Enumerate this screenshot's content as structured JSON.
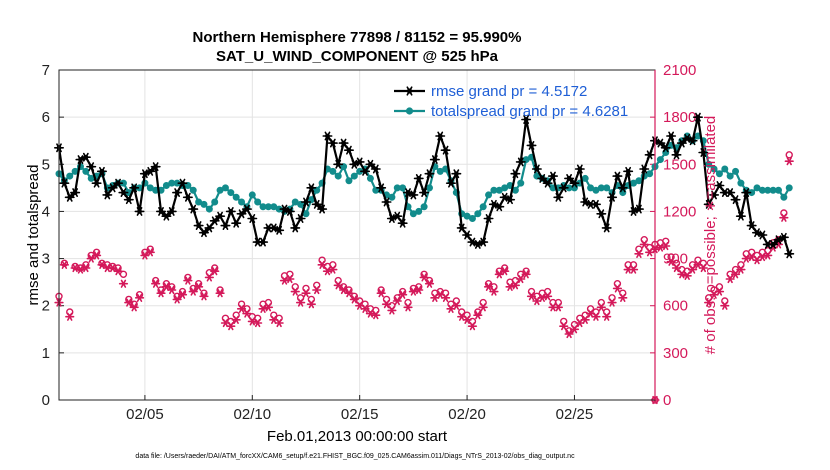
{
  "chart_data": {
    "type": "line",
    "title": "Northern Hemisphere 77898 / 81152 = 95.990%",
    "subtitle": "SAT_U_WIND_COMPONENT @ 525 hPa",
    "xlabel": "Feb.01,2013 00:00:00 start",
    "ylabel_left": "rmse and totalspread",
    "ylabel_right": "# of obs: o=possible; ∗=assimilated",
    "xlim": [
      1,
      28.75
    ],
    "ylim_left": [
      0,
      7
    ],
    "ylim_right": [
      0,
      2100
    ],
    "x_ticks": [
      5,
      10,
      15,
      20,
      25
    ],
    "x_tick_labels": [
      "02/05",
      "02/10",
      "02/15",
      "02/20",
      "02/25"
    ],
    "y_ticks_left": [
      0,
      1,
      2,
      3,
      4,
      5,
      6,
      7
    ],
    "y_tick_labels_left": [
      "0",
      "1",
      "2",
      "3",
      "4",
      "5",
      "6",
      "7"
    ],
    "y_ticks_right": [
      0,
      300,
      600,
      900,
      1200,
      1500,
      1800,
      2100
    ],
    "y_tick_labels_right": [
      "0",
      "300",
      "600",
      "900",
      "1200",
      "1500",
      "1800",
      "2100"
    ],
    "x_start": 1.0,
    "x_step": 0.25,
    "grid": true,
    "legend_position": "top-right",
    "legend_entries": [
      "rmse grand pr = 4.5172",
      "totalspread grand pr = 4.6281"
    ],
    "series": [
      {
        "name": "rmse grand pr = 4.5172",
        "axis": "left",
        "color": "#000000",
        "marker": "*",
        "values": [
          5.35,
          4.6,
          4.3,
          4.4,
          5.1,
          5.15,
          4.95,
          4.6,
          4.85,
          4.35,
          4.5,
          4.6,
          4.4,
          4.25,
          4.5,
          4.0,
          4.8,
          4.85,
          4.95,
          4.0,
          3.9,
          4.0,
          4.4,
          4.6,
          4.3,
          4.05,
          3.7,
          3.55,
          3.65,
          3.8,
          3.9,
          3.7,
          4.0,
          3.75,
          3.95,
          4.05,
          3.85,
          3.35,
          3.35,
          3.65,
          3.65,
          3.6,
          4.05,
          4.0,
          3.65,
          3.85,
          4.2,
          4.5,
          4.15,
          4.05,
          5.6,
          5.45,
          5.0,
          5.45,
          5.3,
          5.0,
          5.05,
          4.85,
          5.0,
          4.9,
          4.5,
          4.2,
          3.85,
          3.9,
          3.75,
          4.4,
          4.35,
          4.7,
          4.4,
          4.8,
          5.1,
          5.6,
          5.3,
          4.6,
          4.8,
          3.65,
          3.5,
          3.35,
          3.3,
          3.35,
          3.85,
          4.15,
          4.1,
          4.3,
          4.25,
          4.8,
          5.05,
          5.95,
          5.4,
          4.9,
          4.7,
          4.6,
          4.75,
          4.3,
          4.5,
          4.7,
          4.6,
          4.9,
          4.2,
          4.15,
          4.15,
          3.95,
          3.65,
          4.3,
          4.75,
          4.5,
          4.85,
          4.0,
          4.05,
          4.9,
          5.2,
          5.5,
          5.45,
          5.35,
          5.6,
          5.2,
          5.45,
          5.55,
          5.5,
          6.0,
          5.25,
          4.15,
          4.35,
          4.55,
          4.4,
          4.4,
          4.25,
          3.9,
          4.4,
          3.7,
          3.55,
          3.5,
          3.3,
          3.3,
          3.4,
          3.45,
          3.1
        ]
      },
      {
        "name": "totalspread grand pr = 4.6281",
        "axis": "left",
        "color": "#128c8c",
        "marker": "o",
        "values": [
          4.8,
          4.65,
          4.75,
          4.85,
          4.95,
          4.85,
          4.7,
          4.75,
          4.8,
          4.5,
          4.55,
          4.6,
          4.6,
          4.4,
          4.5,
          4.5,
          4.6,
          4.5,
          4.45,
          4.45,
          4.55,
          4.6,
          4.6,
          4.55,
          4.55,
          4.45,
          4.2,
          4.15,
          4.05,
          4.2,
          4.45,
          4.5,
          4.4,
          4.3,
          4.2,
          4.1,
          4.35,
          4.2,
          4.1,
          4.1,
          4.1,
          4.05,
          4.0,
          4.05,
          4.2,
          4.15,
          3.95,
          4.25,
          4.45,
          4.6,
          4.9,
          4.85,
          4.75,
          4.95,
          4.65,
          4.75,
          4.85,
          4.9,
          4.7,
          4.45,
          4.45,
          4.35,
          4.3,
          4.5,
          4.5,
          4.1,
          3.95,
          4.0,
          4.1,
          4.5,
          4.95,
          4.85,
          4.9,
          4.65,
          4.4,
          3.95,
          3.9,
          3.85,
          3.95,
          4.1,
          4.35,
          4.45,
          4.45,
          4.5,
          4.55,
          4.45,
          4.6,
          5.1,
          5.15,
          4.75,
          4.7,
          4.65,
          4.5,
          4.5,
          4.55,
          4.5,
          4.5,
          4.6,
          4.7,
          4.5,
          4.45,
          4.5,
          4.5,
          4.4,
          4.55,
          4.4,
          4.55,
          4.6,
          4.65,
          4.75,
          4.8,
          4.95,
          5.1,
          5.25,
          5.4,
          5.35,
          5.5,
          5.6,
          5.5,
          5.6,
          5.5,
          5.0,
          4.9,
          4.8,
          4.9,
          4.75,
          4.85,
          4.6,
          4.45,
          4.4,
          4.5,
          4.45,
          4.45,
          4.45,
          4.45,
          4.3,
          4.5
        ]
      },
      {
        "name": "possible",
        "axis": "right",
        "color": "#d4195a",
        "marker": "o",
        "values": [
          660,
          870,
          560,
          850,
          840,
          860,
          920,
          940,
          870,
          860,
          850,
          840,
          800,
          640,
          610,
          670,
          940,
          960,
          760,
          700,
          740,
          720,
          660,
          690,
          780,
          710,
          740,
          680,
          810,
          840,
          700,
          520,
          500,
          540,
          610,
          580,
          530,
          520,
          610,
          620,
          540,
          520,
          790,
          800,
          720,
          650,
          710,
          640,
          730,
          890,
          850,
          860,
          760,
          720,
          700,
          660,
          630,
          610,
          580,
          570,
          700,
          640,
          600,
          650,
          690,
          620,
          710,
          720,
          800,
          760,
          680,
          690,
          680,
          610,
          630,
          560,
          540,
          500,
          560,
          620,
          740,
          720,
          820,
          840,
          750,
          760,
          800,
          820,
          690,
          660,
          680,
          690,
          620,
          620,
          500,
          440,
          480,
          520,
          540,
          580,
          560,
          620,
          560,
          650,
          740,
          680,
          860,
          860,
          960,
          1020,
          970,
          990,
          1000,
          1010,
          910,
          870,
          830,
          820,
          860,
          890,
          870,
          650,
          700,
          720,
          630,
          800,
          830,
          860,
          930,
          940,
          920,
          940,
          950,
          1000,
          1020,
          1190,
          1560
        ]
      },
      {
        "name": "assimilated",
        "axis": "right",
        "color": "#d4195a",
        "marker": "*",
        "values": [
          620,
          860,
          530,
          840,
          830,
          840,
          900,
          920,
          860,
          840,
          840,
          820,
          740,
          620,
          590,
          650,
          920,
          940,
          740,
          680,
          720,
          700,
          640,
          670,
          760,
          690,
          720,
          660,
          780,
          820,
          680,
          490,
          470,
          510,
          580,
          550,
          500,
          490,
          580,
          590,
          510,
          490,
          760,
          770,
          690,
          620,
          680,
          610,
          700,
          860,
          820,
          830,
          730,
          700,
          680,
          640,
          600,
          580,
          550,
          540,
          680,
          610,
          570,
          630,
          670,
          590,
          690,
          700,
          780,
          740,
          650,
          670,
          650,
          580,
          600,
          530,
          510,
          470,
          540,
          590,
          720,
          690,
          800,
          820,
          720,
          730,
          770,
          800,
          660,
          630,
          650,
          660,
          590,
          590,
          470,
          420,
          450,
          490,
          510,
          550,
          530,
          590,
          530,
          620,
          710,
          650,
          830,
          830,
          930,
          990,
          940,
          960,
          970,
          980,
          880,
          840,
          800,
          790,
          830,
          860,
          840,
          620,
          670,
          690,
          600,
          770,
          800,
          830,
          900,
          910,
          890,
          910,
          920,
          970,
          990,
          1160,
          1520
        ]
      }
    ],
    "extra_points": [
      {
        "series": "possible",
        "x": 28.75,
        "value": 0
      },
      {
        "series": "assimilated",
        "x": 28.75,
        "value": 0
      }
    ]
  },
  "footer_text": "data file: /Users/raeder/DAI/ATM_forcXX/CAM6_setup/f.e21.FHIST_BGC.f09_025.CAM6assim.011/Diags_NTrS_2013-02/obs_diag_output.nc"
}
